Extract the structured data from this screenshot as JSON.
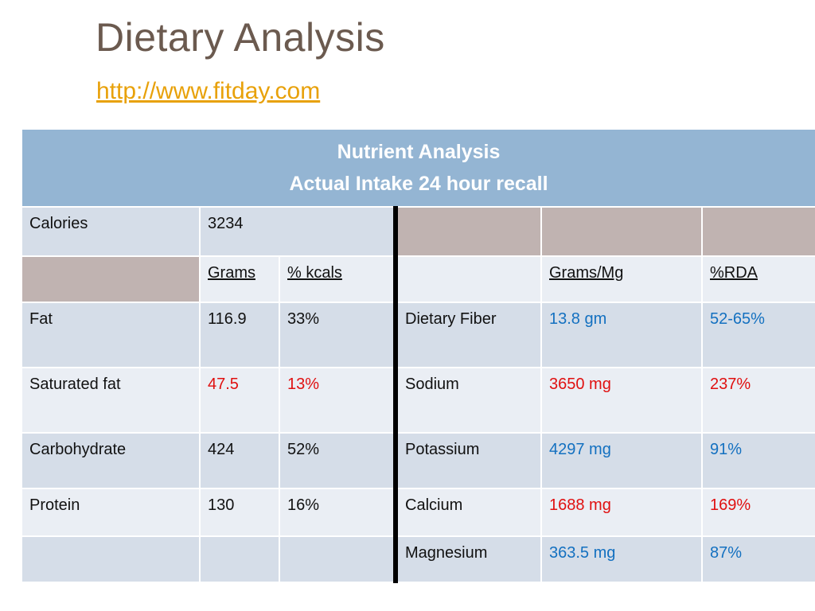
{
  "title": "Dietary Analysis",
  "link": "http://www.fitday.com",
  "colors": {
    "title": "#6b5a4f",
    "link": "#e8a10a",
    "header_bg": "#94b5d3",
    "row_dark": "#d5dde8",
    "row_light": "#eaeef4",
    "mauve": "#c0b3b1",
    "high": "#e01010",
    "ok": "#1370c0"
  },
  "table": {
    "header_line1": "Nutrient Analysis",
    "header_line2": "Actual Intake 24 hour recall",
    "calories_label": "Calories",
    "calories_value": "3234",
    "col_grams": "Grams",
    "col_kcals": "% kcals",
    "col_grams_mg": "Grams/Mg",
    "col_rda": "%RDA",
    "left_rows": [
      {
        "label": "Fat",
        "grams": "116.9",
        "kcals": "33%"
      },
      {
        "label": "Saturated fat",
        "grams": "47.5",
        "kcals": "13%"
      },
      {
        "label": "Carbohydrate",
        "grams": "424",
        "kcals": "52%"
      },
      {
        "label": "Protein",
        "grams": "130",
        "kcals": "16%"
      }
    ],
    "right_rows": [
      {
        "label": "Dietary Fiber",
        "amount": "13.8 gm",
        "rda": "52-65%"
      },
      {
        "label": "Sodium",
        "amount": "3650 mg",
        "rda": "237%"
      },
      {
        "label": "Potassium",
        "amount": "4297 mg",
        "rda": "91%"
      },
      {
        "label": "Calcium",
        "amount": "1688 mg",
        "rda": "169%"
      },
      {
        "label": "Magnesium",
        "amount": "363.5 mg",
        "rda": "87%"
      }
    ]
  }
}
